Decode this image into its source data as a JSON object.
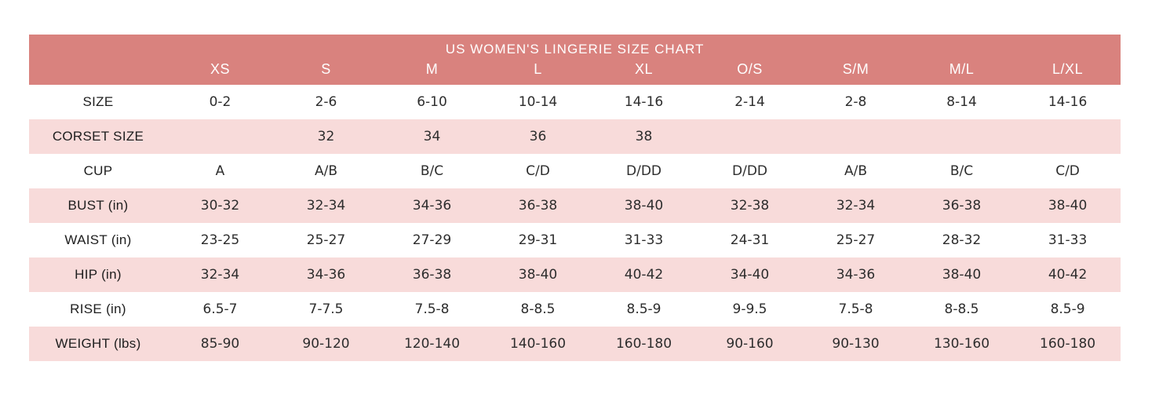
{
  "title": "US WOMEN'S LINGERIE SIZE CHART",
  "colors": {
    "header_bg": "#d9827e",
    "row_alt_bg": "#f8dbda",
    "row_bg": "#ffffff",
    "header_text": "#ffffff",
    "cell_text": "#2d2d2d"
  },
  "chart_data": {
    "type": "table",
    "title": "US WOMEN'S LINGERIE SIZE CHART",
    "columns": [
      "",
      "XS",
      "S",
      "M",
      "L",
      "XL",
      "O/S",
      "S/M",
      "M/L",
      "L/XL"
    ],
    "rows": [
      {
        "label": "SIZE",
        "values": [
          "0-2",
          "2-6",
          "6-10",
          "10-14",
          "14-16",
          "2-14",
          "2-8",
          "8-14",
          "14-16"
        ]
      },
      {
        "label": "CORSET SIZE",
        "values": [
          "",
          "32",
          "34",
          "36",
          "38",
          "",
          "",
          "",
          ""
        ]
      },
      {
        "label": "CUP",
        "values": [
          "A",
          "A/B",
          "B/C",
          "C/D",
          "D/DD",
          "D/DD",
          "A/B",
          "B/C",
          "C/D"
        ]
      },
      {
        "label": "BUST (in)",
        "values": [
          "30-32",
          "32-34",
          "34-36",
          "36-38",
          "38-40",
          "32-38",
          "32-34",
          "36-38",
          "38-40"
        ]
      },
      {
        "label": "WAIST (in)",
        "values": [
          "23-25",
          "25-27",
          "27-29",
          "29-31",
          "31-33",
          "24-31",
          "25-27",
          "28-32",
          "31-33"
        ]
      },
      {
        "label": "HIP (in)",
        "values": [
          "32-34",
          "34-36",
          "36-38",
          "38-40",
          "40-42",
          "34-40",
          "34-36",
          "38-40",
          "40-42"
        ]
      },
      {
        "label": "RISE (in)",
        "values": [
          "6.5-7",
          "7-7.5",
          "7.5-8",
          "8-8.5",
          "8.5-9",
          "9-9.5",
          "7.5-8",
          "8-8.5",
          "8.5-9"
        ]
      },
      {
        "label": "WEIGHT (lbs)",
        "values": [
          "85-90",
          "90-120",
          "120-140",
          "140-160",
          "160-180",
          "90-160",
          "90-130",
          "130-160",
          "160-180"
        ]
      }
    ],
    "layout": {
      "alternating_row_shading": "white / light pink, starting white",
      "header_band": "salmon with white text, title row above column headers"
    }
  }
}
